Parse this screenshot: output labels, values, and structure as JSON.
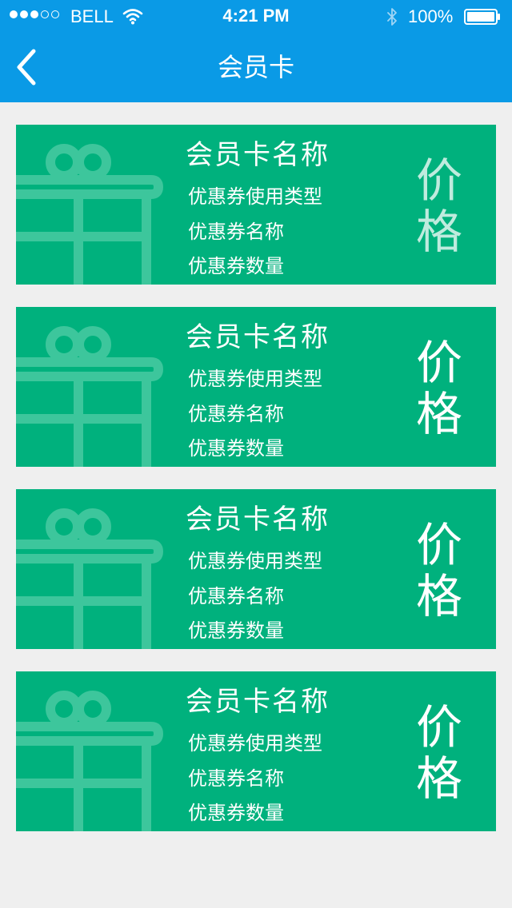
{
  "status_bar": {
    "signal_dots": [
      true,
      true,
      true,
      false,
      false
    ],
    "carrier": "BELL",
    "time": "4:21 PM",
    "battery_percent": "100%",
    "icons": [
      "wifi-icon",
      "bluetooth-icon",
      "battery-icon"
    ]
  },
  "nav": {
    "title": "会员卡",
    "back_icon": "chevron-left-icon"
  },
  "cards": [
    {
      "name": "会员卡名称",
      "coupon_type": "优惠券使用类型",
      "coupon_name": "优惠券名称",
      "coupon_quantity": "优惠券数量",
      "price": "价格"
    },
    {
      "name": "会员卡名称",
      "coupon_type": "优惠券使用类型",
      "coupon_name": "优惠券名称",
      "coupon_quantity": "优惠券数量",
      "price": "价格"
    },
    {
      "name": "会员卡名称",
      "coupon_type": "优惠券使用类型",
      "coupon_name": "优惠券名称",
      "coupon_quantity": "优惠券数量",
      "price": "价格"
    },
    {
      "name": "会员卡名称",
      "coupon_type": "优惠券使用类型",
      "coupon_name": "优惠券名称",
      "coupon_quantity": "优惠券数量",
      "price": "价格"
    }
  ],
  "colors": {
    "header": "#0a9ae6",
    "card": "#00b17d",
    "background": "#efefef"
  }
}
